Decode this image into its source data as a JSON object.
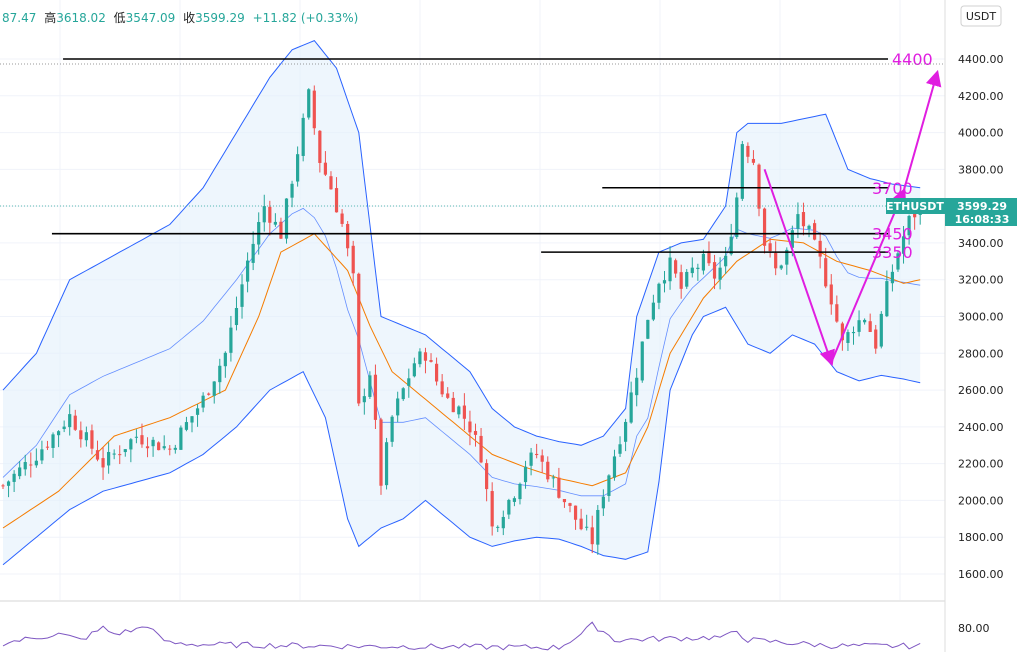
{
  "header": {
    "open": "87.47",
    "high_label": "高",
    "high": "3618.02",
    "low_label": "低",
    "low": "3547.09",
    "close_label": "收",
    "close": "3599.29",
    "change": "+11.82 (+0.33%)"
  },
  "currency_button": "USDT",
  "price_tag": {
    "symbol": "ETHUSDT",
    "price": "3599.29",
    "countdown": "16:08:33"
  },
  "colors": {
    "up": "#26a69a",
    "down": "#ef5350",
    "band_line": "#2962ff",
    "band_fill": "#e3f0fb",
    "ma_line": "#f57c00",
    "annotation": "#e01ee0",
    "tag_bg": "#26a69a"
  },
  "chart_data": {
    "type": "candlestick",
    "y_axis": {
      "min": 1500,
      "max": 4600,
      "ticks": [
        1600,
        1800,
        2000,
        2200,
        2400,
        2600,
        2800,
        3000,
        3200,
        3400,
        3600,
        3800,
        4000,
        4200,
        4400
      ],
      "tick_labels": [
        "1600.00",
        "1800.00",
        "2000.00",
        "2200.00",
        "2400.00",
        "2600.00",
        "2800.00",
        "3000.00",
        "3200.00",
        "3400.00",
        "3600.00",
        "3800.00",
        "4000.00",
        "4200.00",
        "4400.00"
      ]
    },
    "last_price": 3599.29,
    "close_path": [
      [
        0,
        2080
      ],
      [
        6,
        2250
      ],
      [
        12,
        2460
      ],
      [
        18,
        2200
      ],
      [
        24,
        2350
      ],
      [
        30,
        2280
      ],
      [
        36,
        2550
      ],
      [
        40,
        2800
      ],
      [
        44,
        3300
      ],
      [
        47,
        3600
      ],
      [
        50,
        3450
      ],
      [
        53,
        3900
      ],
      [
        55,
        4200
      ],
      [
        57,
        3850
      ],
      [
        59,
        3700
      ],
      [
        61,
        3500
      ],
      [
        63,
        3200
      ],
      [
        64,
        2500
      ],
      [
        66,
        2700
      ],
      [
        68,
        2100
      ],
      [
        70,
        2450
      ],
      [
        72,
        2600
      ],
      [
        74,
        2750
      ],
      [
        76,
        2800
      ],
      [
        78,
        2650
      ],
      [
        80,
        2550
      ],
      [
        82,
        2500
      ],
      [
        84,
        2400
      ],
      [
        86,
        2250
      ],
      [
        88,
        1850
      ],
      [
        90,
        1950
      ],
      [
        92,
        2050
      ],
      [
        94,
        2200
      ],
      [
        96,
        2250
      ],
      [
        98,
        2150
      ],
      [
        100,
        2050
      ],
      [
        102,
        1950
      ],
      [
        104,
        1850
      ],
      [
        106,
        1780
      ],
      [
        108,
        2050
      ],
      [
        110,
        2250
      ],
      [
        112,
        2450
      ],
      [
        114,
        2700
      ],
      [
        116,
        3000
      ],
      [
        118,
        3200
      ],
      [
        120,
        3280
      ],
      [
        122,
        3150
      ],
      [
        124,
        3250
      ],
      [
        126,
        3300
      ],
      [
        128,
        3220
      ],
      [
        130,
        3300
      ],
      [
        132,
        3650
      ],
      [
        133,
        3950
      ],
      [
        135,
        3850
      ],
      [
        137,
        3400
      ],
      [
        139,
        3250
      ],
      [
        141,
        3350
      ],
      [
        143,
        3550
      ],
      [
        145,
        3450
      ],
      [
        147,
        3300
      ],
      [
        149,
        3100
      ],
      [
        151,
        2850
      ],
      [
        153,
        2950
      ],
      [
        155,
        3000
      ],
      [
        157,
        2850
      ],
      [
        159,
        3150
      ],
      [
        161,
        3350
      ],
      [
        163,
        3520
      ],
      [
        165,
        3599
      ]
    ],
    "bands_upper": [
      [
        0,
        2600
      ],
      [
        6,
        2800
      ],
      [
        12,
        3200
      ],
      [
        18,
        3300
      ],
      [
        24,
        3400
      ],
      [
        30,
        3500
      ],
      [
        36,
        3700
      ],
      [
        42,
        4000
      ],
      [
        48,
        4300
      ],
      [
        52,
        4450
      ],
      [
        56,
        4500
      ],
      [
        60,
        4350
      ],
      [
        64,
        4000
      ],
      [
        66,
        3500
      ],
      [
        68,
        3000
      ],
      [
        72,
        2950
      ],
      [
        76,
        2900
      ],
      [
        80,
        2800
      ],
      [
        84,
        2700
      ],
      [
        88,
        2500
      ],
      [
        92,
        2400
      ],
      [
        96,
        2350
      ],
      [
        100,
        2320
      ],
      [
        104,
        2300
      ],
      [
        108,
        2350
      ],
      [
        112,
        2500
      ],
      [
        114,
        3000
      ],
      [
        118,
        3350
      ],
      [
        122,
        3400
      ],
      [
        126,
        3420
      ],
      [
        130,
        3600
      ],
      [
        132,
        4000
      ],
      [
        134,
        4050
      ],
      [
        140,
        4050
      ],
      [
        148,
        4100
      ],
      [
        152,
        3800
      ],
      [
        156,
        3750
      ],
      [
        160,
        3720
      ],
      [
        165,
        3700
      ]
    ],
    "bands_lower": [
      [
        0,
        1650
      ],
      [
        6,
        1800
      ],
      [
        12,
        1950
      ],
      [
        18,
        2050
      ],
      [
        24,
        2100
      ],
      [
        30,
        2150
      ],
      [
        36,
        2250
      ],
      [
        42,
        2400
      ],
      [
        48,
        2600
      ],
      [
        54,
        2700
      ],
      [
        58,
        2450
      ],
      [
        62,
        1900
      ],
      [
        64,
        1750
      ],
      [
        68,
        1850
      ],
      [
        72,
        1900
      ],
      [
        76,
        2000
      ],
      [
        80,
        1900
      ],
      [
        84,
        1800
      ],
      [
        88,
        1750
      ],
      [
        92,
        1780
      ],
      [
        96,
        1800
      ],
      [
        100,
        1790
      ],
      [
        104,
        1750
      ],
      [
        108,
        1700
      ],
      [
        112,
        1680
      ],
      [
        116,
        1720
      ],
      [
        118,
        2100
      ],
      [
        120,
        2600
      ],
      [
        124,
        2900
      ],
      [
        126,
        3000
      ],
      [
        130,
        3050
      ],
      [
        134,
        2850
      ],
      [
        138,
        2800
      ],
      [
        142,
        2900
      ],
      [
        146,
        2850
      ],
      [
        150,
        2700
      ],
      [
        154,
        2650
      ],
      [
        158,
        2680
      ],
      [
        162,
        2660
      ],
      [
        165,
        2640
      ]
    ],
    "moving_average": [
      [
        0,
        1850
      ],
      [
        10,
        2050
      ],
      [
        20,
        2350
      ],
      [
        30,
        2450
      ],
      [
        40,
        2600
      ],
      [
        46,
        3000
      ],
      [
        50,
        3350
      ],
      [
        56,
        3450
      ],
      [
        62,
        3250
      ],
      [
        66,
        2950
      ],
      [
        70,
        2700
      ],
      [
        76,
        2550
      ],
      [
        82,
        2400
      ],
      [
        88,
        2250
      ],
      [
        94,
        2180
      ],
      [
        100,
        2120
      ],
      [
        106,
        2080
      ],
      [
        112,
        2150
      ],
      [
        116,
        2400
      ],
      [
        120,
        2800
      ],
      [
        126,
        3100
      ],
      [
        132,
        3300
      ],
      [
        138,
        3420
      ],
      [
        144,
        3400
      ],
      [
        150,
        3300
      ],
      [
        156,
        3250
      ],
      [
        162,
        3180
      ],
      [
        165,
        3200
      ]
    ],
    "horizontal_levels": [
      {
        "value": 4400,
        "label": "4400",
        "x_from": 18,
        "x_to": 180
      },
      {
        "value": 3700,
        "label": "3700",
        "x_from": 115,
        "x_to": 180
      },
      {
        "value": 3450,
        "label": "3450",
        "x_from": 16,
        "x_to": 180
      },
      {
        "value": 3350,
        "label": "3350",
        "x_from": 104,
        "x_to": 180
      }
    ],
    "annotation_path": [
      [
        137,
        3800
      ],
      [
        149,
        2750
      ],
      [
        162,
        3680
      ],
      [
        168,
        4320
      ]
    ],
    "volume_spikes": [
      [
        0,
        0.2
      ],
      [
        5,
        0.35
      ],
      [
        10,
        0.5
      ],
      [
        14,
        0.3
      ],
      [
        18,
        0.7
      ],
      [
        20,
        0.5
      ],
      [
        24,
        0.65
      ],
      [
        26,
        0.8
      ],
      [
        28,
        0.4
      ],
      [
        30,
        0.2
      ],
      [
        36,
        0.15
      ],
      [
        60,
        0.1
      ],
      [
        100,
        0.05
      ],
      [
        104,
        0.5
      ],
      [
        106,
        0.8
      ],
      [
        108,
        0.6
      ],
      [
        110,
        0.3
      ],
      [
        130,
        0.4
      ],
      [
        132,
        0.6
      ],
      [
        134,
        0.3
      ],
      [
        150,
        0.1
      ]
    ],
    "rsi_axis_label": "80.00"
  }
}
